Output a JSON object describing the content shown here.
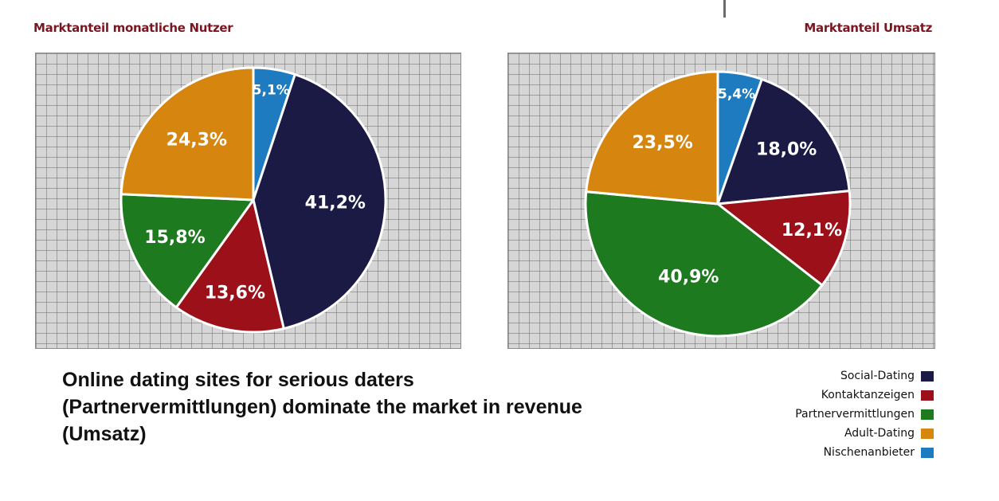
{
  "caption": {
    "lines": [
      "Online dating sites for serious daters",
      "(Partnervermittlungen) dominate the market in revenue",
      "(Umsatz)"
    ]
  },
  "legend": [
    {
      "label": "Social-Dating",
      "color": "#1b1a45"
    },
    {
      "label": "Kontaktanzeigen",
      "color": "#9b1019"
    },
    {
      "label": "Partnervermittlungen",
      "color": "#1d7a1f"
    },
    {
      "label": "Adult-Dating",
      "color": "#d6860f"
    },
    {
      "label": "Nischenanbieter",
      "color": "#1f7bbf"
    }
  ],
  "chart_data": [
    {
      "type": "pie",
      "title": "Marktanteil monatliche Nutzer",
      "categories": [
        "Nischenanbieter",
        "Social-Dating",
        "Kontaktanzeigen",
        "Partnervermittlungen",
        "Adult-Dating"
      ],
      "values": [
        5.1,
        41.2,
        13.6,
        15.8,
        24.3
      ],
      "labels": [
        "5,1%",
        "41,2%",
        "13,6%",
        "15,8%",
        "24,3%"
      ],
      "colors": [
        "#1f7bbf",
        "#1b1a45",
        "#9b1019",
        "#1d7a1f",
        "#d6860f"
      ],
      "grid": true
    },
    {
      "type": "pie",
      "title": "Marktanteil Umsatz",
      "categories": [
        "Nischenanbieter",
        "Social-Dating",
        "Kontaktanzeigen",
        "Partnervermittlungen",
        "Adult-Dating"
      ],
      "values": [
        5.4,
        18.0,
        12.1,
        40.9,
        23.5
      ],
      "labels": [
        "5,4%",
        "18,0%",
        "12,1%",
        "40,9%",
        "23,5%"
      ],
      "colors": [
        "#1f7bbf",
        "#1b1a45",
        "#9b1019",
        "#1d7a1f",
        "#d6860f"
      ],
      "grid": true
    }
  ]
}
